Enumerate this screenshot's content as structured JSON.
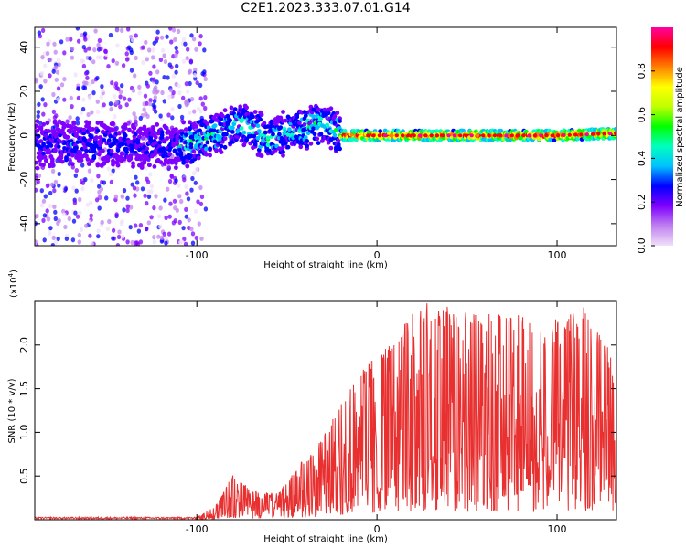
{
  "chart_data": [
    {
      "type": "heatmap",
      "title": "C2E1.2023.333.07.01.G14",
      "xlabel": "Height of straight line (km)",
      "ylabel": "Frequency (Hz)",
      "xlim": [
        -190,
        133
      ],
      "ylim": [
        -50,
        49
      ],
      "xticks": [
        -100,
        0,
        100
      ],
      "yticks": [
        -40,
        -20,
        0,
        20,
        40
      ],
      "colorbar": {
        "label": "Normalized spectral amplitude",
        "range": [
          0.0,
          1.0
        ],
        "ticks": [
          0.0,
          0.2,
          0.4,
          0.6,
          0.8
        ],
        "tick_labels": [
          "0.0",
          "0.2",
          "0.4",
          "0.6",
          "0.8"
        ],
        "colors": [
          "#f0e0f8",
          "#c080f0",
          "#8000ff",
          "#0000ff",
          "#00c0ff",
          "#00ffc0",
          "#00ff00",
          "#c0ff00",
          "#ffff00",
          "#ff8000",
          "#ff0000",
          "#ff00a0"
        ]
      },
      "ridge": {
        "description_points": [
          {
            "x": -190,
            "f": -4
          },
          {
            "x": -150,
            "f": -4
          },
          {
            "x": -110,
            "f": -5
          },
          {
            "x": -95,
            "f": -1
          },
          {
            "x": -75,
            "f": 6
          },
          {
            "x": -60,
            "f": -2
          },
          {
            "x": -45,
            "f": 3
          },
          {
            "x": -30,
            "f": 6
          },
          {
            "x": -20,
            "f": 0
          },
          {
            "x": 0,
            "f": 0
          },
          {
            "x": 50,
            "f": 0
          },
          {
            "x": 100,
            "f": 0
          },
          {
            "x": 133,
            "f": 1
          }
        ]
      }
    },
    {
      "type": "line",
      "title": "",
      "xlabel": "Height of straight line (km)",
      "ylabel": "SNR (10 * v/v)",
      "scale_label": "(x10",
      "scale_exponent": "4",
      "scale_close": ")",
      "xlim": [
        -190,
        133
      ],
      "ylim": [
        0,
        25000
      ],
      "xticks": [
        -100,
        0,
        100
      ],
      "yticks": [
        5000,
        10000,
        15000,
        20000
      ],
      "ytick_labels": [
        "0.5",
        "1.0",
        "1.5",
        "2.0"
      ],
      "color": "#e83030",
      "envelope": [
        {
          "x": -190,
          "y": 300
        },
        {
          "x": -100,
          "y": 300
        },
        {
          "x": -90,
          "y": 1500
        },
        {
          "x": -80,
          "y": 5200
        },
        {
          "x": -70,
          "y": 3500
        },
        {
          "x": -55,
          "y": 3000
        },
        {
          "x": -45,
          "y": 6000
        },
        {
          "x": -35,
          "y": 8000
        },
        {
          "x": -25,
          "y": 12000
        },
        {
          "x": -15,
          "y": 16000
        },
        {
          "x": 0,
          "y": 19000
        },
        {
          "x": 10,
          "y": 21000
        },
        {
          "x": 25,
          "y": 25000
        },
        {
          "x": 50,
          "y": 24000
        },
        {
          "x": 80,
          "y": 23500
        },
        {
          "x": 100,
          "y": 23000
        },
        {
          "x": 115,
          "y": 24500
        },
        {
          "x": 133,
          "y": 18000
        }
      ]
    }
  ]
}
